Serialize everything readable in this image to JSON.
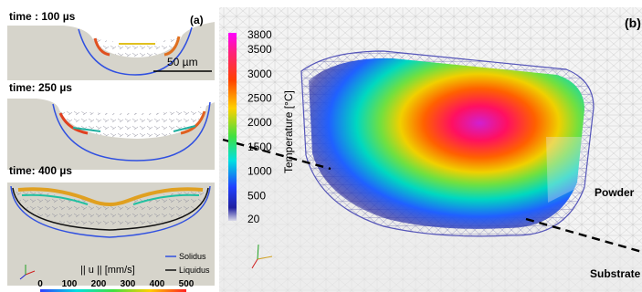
{
  "panel_a": {
    "label": "(a)",
    "time1": "time : 100 µs",
    "time2": "time: 250 µs",
    "time3": "time: 400 µs",
    "scale_bar": "50 µm",
    "legend": {
      "solidus": "Solidus",
      "liquidus": "Liquidus"
    },
    "colorbar_title": "|| u || [mm/s]",
    "colorbar_ticks": [
      "0",
      "100",
      "200",
      "300",
      "400",
      "500"
    ],
    "colors": {
      "solidus": "#3050e0",
      "liquidus": "#111111"
    }
  },
  "panel_b": {
    "label": "(b)",
    "colorbar_title": "Temperature [°C]",
    "colorbar_ticks": [
      "3800",
      "3500",
      "3000",
      "2500",
      "2000",
      "1500",
      "1000",
      "500",
      "20"
    ],
    "label_powder": "Powder",
    "label_substrate": "Substrate"
  }
}
